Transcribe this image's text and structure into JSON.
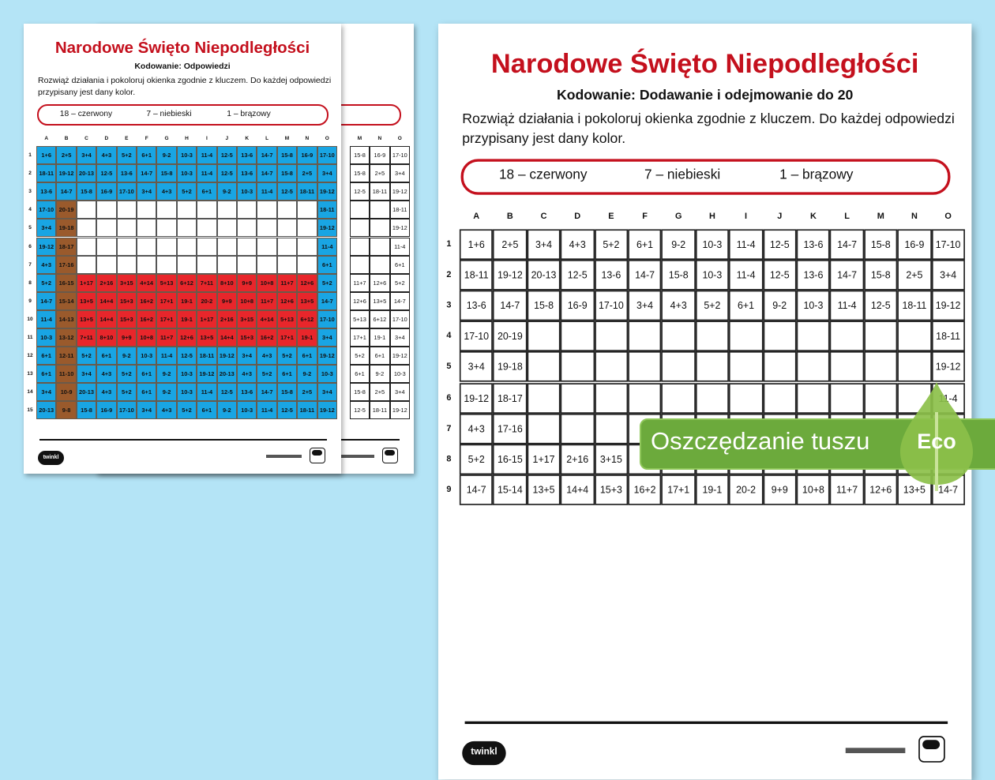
{
  "title": "Narodowe Święto Niepodległości",
  "answers_subtitle": "Kodowanie: Odpowiedzi",
  "task_subtitle": "Kodowanie: Dodawanie i odejmowanie do 20",
  "instructions": "Rozwiąż działania i pokoloruj okienka zgodnie z kluczem. Do każdej odpowiedzi przypisany jest dany kolor.",
  "key": [
    {
      "label": "18 – czerwony",
      "answer": 18,
      "color": "#e8262b"
    },
    {
      "label": "7 – niebieski",
      "answer": 7,
      "color": "#19a5e3"
    },
    {
      "label": "1 – brązowy",
      "answer": 1,
      "color": "#9a5a2c"
    }
  ],
  "logo": "twinkl",
  "columns": [
    "A",
    "B",
    "C",
    "D",
    "E",
    "F",
    "G",
    "H",
    "I",
    "J",
    "K",
    "L",
    "M",
    "N",
    "O"
  ],
  "rows": [
    "1",
    "2",
    "3",
    "4",
    "5",
    "6",
    "7",
    "8",
    "9",
    "10",
    "11",
    "12",
    "13",
    "14",
    "15"
  ],
  "grid": [
    [
      "1+6",
      "2+5",
      "3+4",
      "4+3",
      "5+2",
      "6+1",
      "9-2",
      "10-3",
      "11-4",
      "12-5",
      "13-6",
      "14-7",
      "15-8",
      "16-9",
      "17-10"
    ],
    [
      "18-11",
      "19-12",
      "20-13",
      "12-5",
      "13-6",
      "14-7",
      "15-8",
      "10-3",
      "11-4",
      "12-5",
      "13-6",
      "14-7",
      "15-8",
      "2+5",
      "3+4"
    ],
    [
      "13-6",
      "14-7",
      "15-8",
      "16-9",
      "17-10",
      "3+4",
      "4+3",
      "5+2",
      "6+1",
      "9-2",
      "10-3",
      "11-4",
      "12-5",
      "18-11",
      "19-12"
    ],
    [
      "17-10",
      "20-19",
      "",
      "",
      "",
      "",
      "",
      "",
      "",
      "",
      "",
      "",
      "",
      "",
      "18-11"
    ],
    [
      "3+4",
      "19-18",
      "",
      "",
      "",
      "",
      "",
      "",
      "",
      "",
      "",
      "",
      "",
      "",
      "19-12"
    ],
    [
      "19-12",
      "18-17",
      "",
      "",
      "",
      "",
      "",
      "",
      "",
      "",
      "",
      "",
      "",
      "",
      "11-4"
    ],
    [
      "4+3",
      "17-16",
      "",
      "",
      "",
      "",
      "",
      "",
      "",
      "",
      "",
      "",
      "",
      "",
      "6+1"
    ],
    [
      "5+2",
      "16-15",
      "1+17",
      "2+16",
      "3+15",
      "4+14",
      "5+13",
      "6+12",
      "7+11",
      "8+10",
      "9+9",
      "10+8",
      "11+7",
      "12+6",
      "5+2"
    ],
    [
      "14-7",
      "15-14",
      "13+5",
      "14+4",
      "15+3",
      "16+2",
      "17+1",
      "19-1",
      "20-2",
      "9+9",
      "10+8",
      "11+7",
      "12+6",
      "13+5",
      "14-7"
    ],
    [
      "11-4",
      "14-13",
      "13+5",
      "14+4",
      "15+3",
      "16+2",
      "17+1",
      "19-1",
      "1+17",
      "2+16",
      "3+15",
      "4+14",
      "5+13",
      "6+12",
      "17-10"
    ],
    [
      "10-3",
      "13-12",
      "7+11",
      "8+10",
      "9+9",
      "10+8",
      "11+7",
      "12+6",
      "13+5",
      "14+4",
      "15+3",
      "16+2",
      "17+1",
      "19-1",
      "3+4"
    ],
    [
      "6+1",
      "12-11",
      "5+2",
      "6+1",
      "9-2",
      "10-3",
      "11-4",
      "12-5",
      "18-11",
      "19-12",
      "3+4",
      "4+3",
      "5+2",
      "6+1",
      "19-12"
    ],
    [
      "6+1",
      "11-10",
      "3+4",
      "4+3",
      "5+2",
      "6+1",
      "9-2",
      "10-3",
      "19-12",
      "20-13",
      "4+3",
      "5+2",
      "6+1",
      "9-2",
      "10-3"
    ],
    [
      "3+4",
      "10-9",
      "20-13",
      "4+3",
      "5+2",
      "6+1",
      "9-2",
      "10-3",
      "11-4",
      "12-5",
      "13-6",
      "14-7",
      "15-8",
      "2+5",
      "3+4"
    ],
    [
      "20-13",
      "9-8",
      "15-8",
      "16-9",
      "17-10",
      "3+4",
      "4+3",
      "5+2",
      "6+1",
      "9-2",
      "10-3",
      "11-4",
      "12-5",
      "18-11",
      "19-12"
    ]
  ],
  "eco_badge": {
    "text": "Oszczędzanie tuszu",
    "label": "Eco",
    "color": "#6caa3c",
    "leaf_color": "#8cc04a"
  }
}
